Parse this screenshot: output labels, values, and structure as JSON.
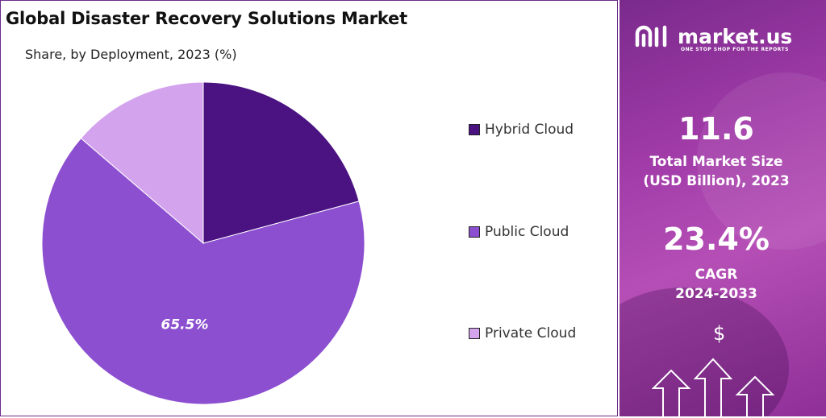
{
  "title": "Global Disaster Recovery Solutions Market",
  "subtitle": "Share, by Deployment, 2023 (%)",
  "chart_data": {
    "type": "pie",
    "categories": [
      "Hybrid Cloud",
      "Public Cloud",
      "Private Cloud"
    ],
    "values": [
      20.8,
      65.5,
      13.7
    ],
    "data_labels": [
      "",
      "65.5%",
      ""
    ],
    "colors": [
      "#4b1381",
      "#8c4fd0",
      "#d4a3ee"
    ],
    "legend_position": "right"
  },
  "sidebar": {
    "brand_name": "market.us",
    "brand_tagline": "ONE STOP SHOP FOR THE REPORTS",
    "market_size_value": "11.6",
    "market_size_label_1": "Total Market Size",
    "market_size_label_2": "(USD Billion), 2023",
    "cagr_value": "23.4%",
    "cagr_label_1": "CAGR",
    "cagr_label_2": "2024-2033",
    "dollar_icon_text": "$",
    "icons": [
      "market-us-logo",
      "dollar-icon",
      "up-arrow-icon"
    ]
  }
}
